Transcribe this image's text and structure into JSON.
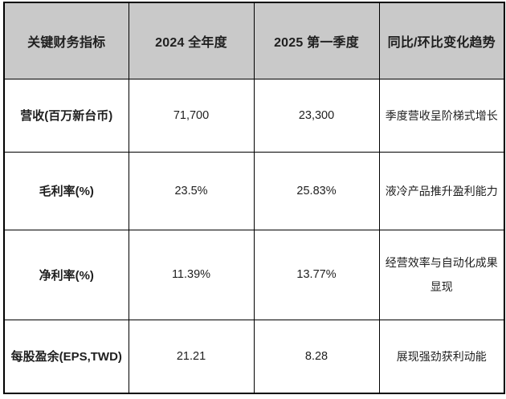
{
  "chart_data": {
    "type": "table",
    "columns": [
      "关键财务指标",
      "2024 全年度",
      "2025 第一季度",
      "同比/环比变化趋势"
    ],
    "rows": [
      [
        "营收(百万新台币)",
        "71,700",
        "23,300",
        "季度营收呈阶梯式增长"
      ],
      [
        "毛利率(%)",
        "23.5%",
        "25.83%",
        "液冷产品推升盈利能力"
      ],
      [
        "净利率(%)",
        "11.39%",
        "13.77%",
        "经营效率与自动化成果显现"
      ],
      [
        "每股盈余(EPS,TWD)",
        "21.21",
        "8.28",
        "展现强劲获利动能"
      ]
    ]
  },
  "colors": {
    "header_bg": "#c9c9c9",
    "border": "#000000",
    "header_text": "#1c1c1c",
    "cell_text": "#2b2b2b",
    "cell_bg": "#ffffff"
  }
}
